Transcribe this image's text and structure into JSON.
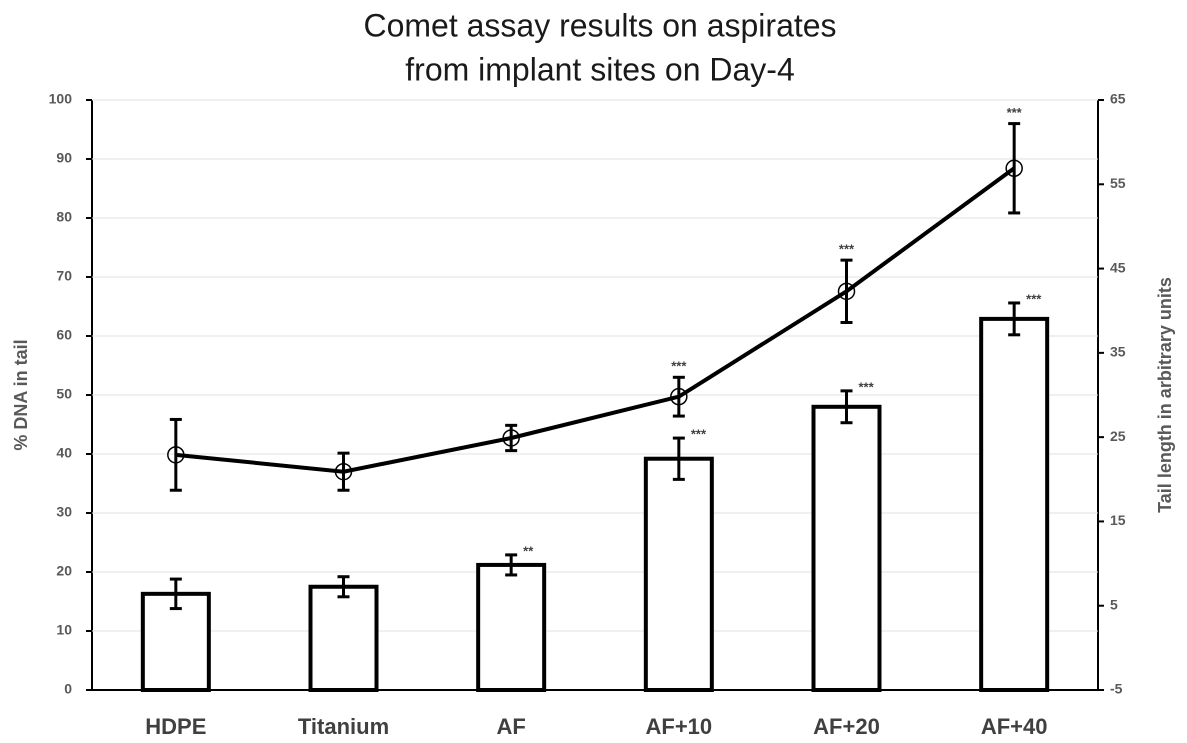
{
  "chart_data": {
    "type": "bar-line",
    "title": [
      "Comet assay results on aspirates",
      "from implant sites on Day-4"
    ],
    "y_label": "% DNA in tail",
    "y2_label": "Tail length in arbitrary  units",
    "categories": [
      "HDPE",
      "Titanium",
      "AF",
      "AF+10",
      "AF+20",
      "AF+40"
    ],
    "ylim": [
      0,
      100
    ],
    "yticks": [
      0,
      10,
      20,
      30,
      40,
      50,
      60,
      70,
      80,
      90,
      100
    ],
    "y2lim": [
      -5,
      65
    ],
    "y2ticks": [
      -5,
      5,
      15,
      25,
      35,
      45,
      55,
      65
    ],
    "series": [
      {
        "type": "bar",
        "color": "#000000",
        "values": [
          16.3,
          17.5,
          21.2,
          39.2,
          48,
          62.9
        ],
        "errors": [
          2.5,
          1.7,
          1.7,
          3.5,
          2.7,
          2.7
        ],
        "annotations": [
          null,
          null,
          "**",
          "***",
          "***",
          "***"
        ]
      },
      {
        "type": "line",
        "axis": "y2",
        "color": "#000000",
        "values": [
          22.9,
          20.9,
          24.9,
          29.8,
          42.3,
          56.9
        ],
        "errors": [
          4.2,
          2.2,
          1.5,
          2.3,
          3.7,
          5.3
        ],
        "annotations": [
          null,
          null,
          null,
          "***",
          "***",
          "***"
        ]
      }
    ]
  }
}
